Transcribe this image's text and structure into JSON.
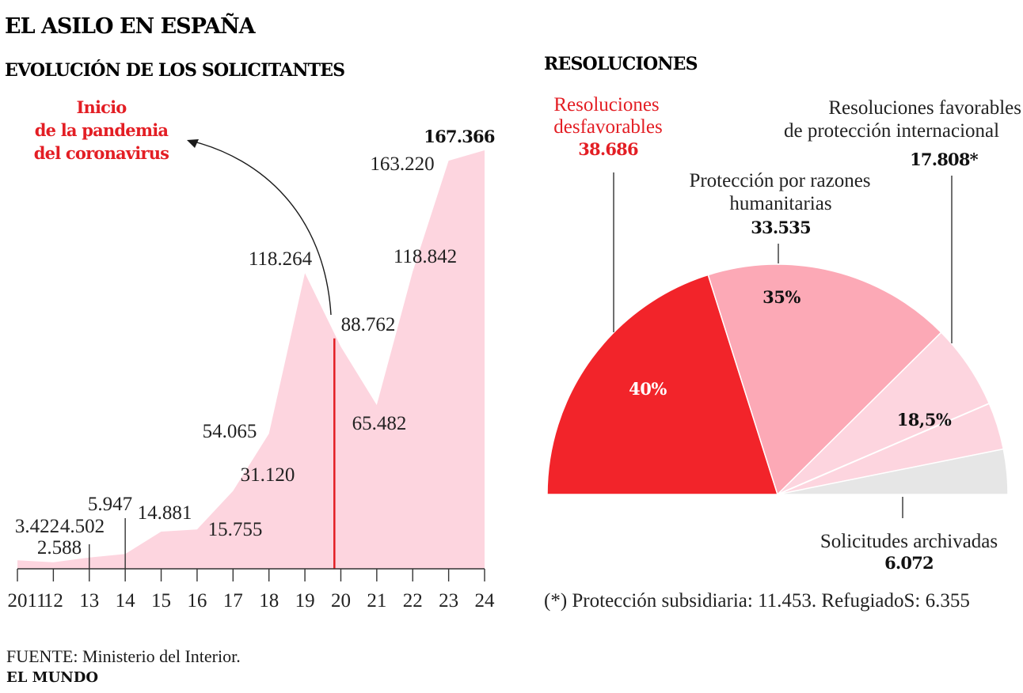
{
  "header": {
    "title": "EL ASILO EN ESPAÑA",
    "left_subtitle": "EVOLUCIÓN DE LOS SOLICITANTES",
    "right_subtitle": "RESOLUCIONES"
  },
  "colors": {
    "area": "#fdd5df",
    "accent_red": "#e31e24",
    "pie_red": "#f2242a",
    "pie_pink": "#fca9b6",
    "pie_light_pink": "#fdd5df",
    "pie_grey": "#e6e6e6"
  },
  "chart_data": [
    {
      "type": "area",
      "title": "EVOLUCIÓN DE LOS SOLICITANTES",
      "x": [
        "2011",
        "12",
        "13",
        "14",
        "15",
        "16",
        "17",
        "18",
        "19",
        "20",
        "21",
        "22",
        "23",
        "24"
      ],
      "values": [
        3422,
        2588,
        4502,
        5947,
        14881,
        15755,
        31120,
        54065,
        118264,
        88762,
        65482,
        118842,
        163220,
        167366
      ],
      "value_labels": [
        "3.422",
        "2.588",
        "4.502",
        "5.947",
        "14.881",
        "15.755",
        "31.120",
        "54.065",
        "118.264",
        "88.762",
        "65.482",
        "118.842",
        "163.220",
        "167.366"
      ],
      "ylim": [
        0,
        167366
      ],
      "annotation": {
        "lines": [
          "Inicio",
          "de la pandemia",
          "del coronavirus"
        ],
        "x_between": [
          "19",
          "20"
        ]
      },
      "grid": false
    },
    {
      "type": "pie",
      "title": "RESOLUCIONES",
      "half": true,
      "slices": [
        {
          "name_lines": [
            "Resoluciones",
            "desfavorables"
          ],
          "value": 38686,
          "value_label": "38.686",
          "percent_label": "40%"
        },
        {
          "name_lines": [
            "Protección por razones",
            "humanitarias"
          ],
          "value": 33535,
          "value_label": "33.535",
          "percent_label": "35%"
        },
        {
          "name_lines": [
            "Resoluciones favorables",
            "de protección internacional"
          ],
          "value": 17808,
          "value_label": "17.808*",
          "percent_label": "18,5%",
          "sub": [
            {
              "name": "Protección subsidiaria",
              "value": 11453
            },
            {
              "name": "Refugiados",
              "value": 6355
            }
          ]
        },
        {
          "name_lines": [
            "Solicitudes archivadas"
          ],
          "value": 6072,
          "value_label": "6.072",
          "percent_label": ""
        }
      ],
      "footnote": "(*) Protección subsidiaria: 11.453.  RefugiadoS: 6.355"
    }
  ],
  "footer": {
    "source": "FUENTE: Ministerio del Interior.",
    "brand": "EL MUNDO"
  }
}
